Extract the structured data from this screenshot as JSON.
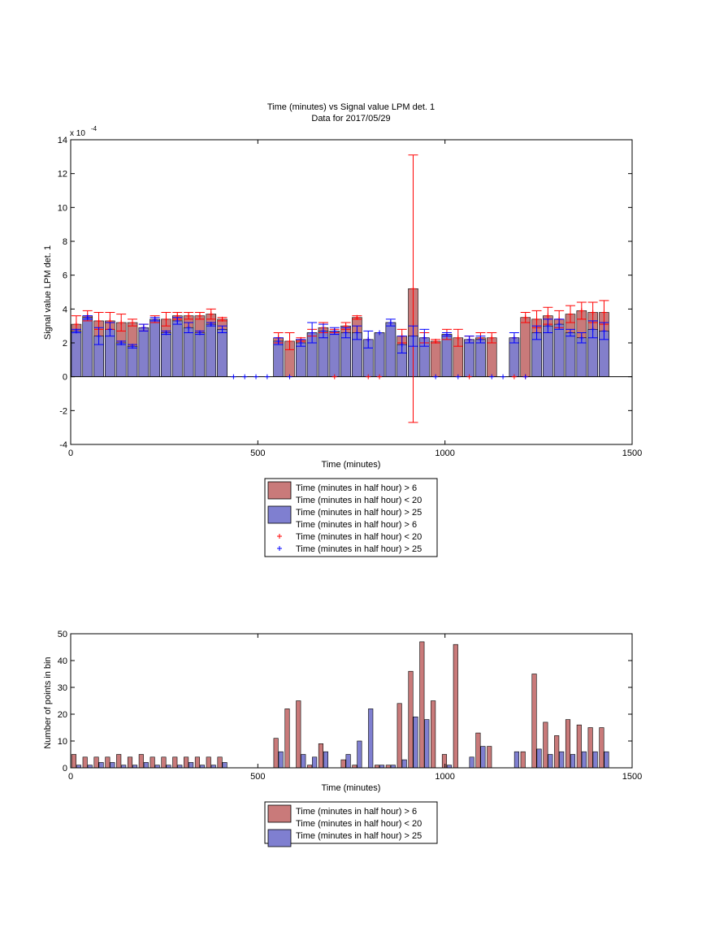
{
  "chart_data": [
    {
      "type": "bar",
      "title": "Time (minutes) vs Signal value LPM det. 1",
      "subtitle": "Data for 2017/05/29",
      "xlabel": "Time (minutes)",
      "ylabel": "Signal value LPM det. 1",
      "y_exponent_label": "x 10",
      "y_exponent_power": "-4",
      "xlim": [
        0,
        1500
      ],
      "ylim": [
        -4,
        14
      ],
      "xticks": [
        0,
        500,
        1000,
        1500
      ],
      "yticks": [
        -4,
        -2,
        0,
        2,
        4,
        6,
        8,
        10,
        12,
        14
      ],
      "grid": false,
      "legend_position": "below",
      "legend": [
        {
          "label": "Time (minutes in half hour) > 6",
          "kind": "bar",
          "color": "#c97a7a"
        },
        {
          "label": "Time (minutes in half hour) < 20",
          "kind": "text"
        },
        {
          "label": "Time (minutes in half hour) > 25",
          "kind": "bar",
          "color": "#7f7fd0"
        },
        {
          "label": "Time (minutes in half hour) > 6",
          "kind": "text"
        },
        {
          "label": "Time (minutes in half hour) < 20",
          "kind": "marker",
          "color": "#ff0000"
        },
        {
          "label": "Time (minutes in half hour) > 25",
          "kind": "marker",
          "color": "#0000ff"
        }
      ],
      "series": [
        {
          "color": "#c97a7a",
          "error_color": "#ff0000",
          "x": [
            15,
            45,
            75,
            105,
            135,
            165,
            195,
            225,
            255,
            285,
            315,
            345,
            375,
            405,
            435,
            465,
            495,
            525,
            555,
            585,
            615,
            645,
            675,
            705,
            735,
            765,
            795,
            825,
            855,
            885,
            915,
            945,
            975,
            1005,
            1035,
            1065,
            1095,
            1125,
            1155,
            1185,
            1215,
            1245,
            1275,
            1305,
            1335,
            1365,
            1395,
            1425
          ],
          "values": [
            3.1,
            3.6,
            3.3,
            3.3,
            3.2,
            3.2,
            2.9,
            3.4,
            3.4,
            3.6,
            3.6,
            3.6,
            3.7,
            3.4,
            0,
            0,
            0,
            0,
            2.3,
            2.1,
            2.2,
            2.6,
            2.9,
            2.7,
            3.0,
            3.5,
            2.2,
            2.6,
            3.2,
            2.4,
            5.2,
            2.3,
            2.1,
            2.5,
            2.3,
            2.2,
            2.3,
            2.3,
            0,
            2.3,
            3.5,
            3.4,
            3.6,
            3.4,
            3.7,
            3.9,
            3.8,
            3.8
          ],
          "errors": [
            0.5,
            0.3,
            0.5,
            0.5,
            0.5,
            0.2,
            0.2,
            0.2,
            0.4,
            0.2,
            0.2,
            0.2,
            0.3,
            0.1,
            0,
            0,
            0,
            0,
            0.3,
            0.5,
            0.1,
            0.2,
            0.3,
            0.1,
            0.2,
            0.1,
            0,
            0,
            0,
            0.4,
            7.9,
            0.3,
            0.1,
            0.3,
            0.5,
            0.2,
            0.3,
            0.3,
            0,
            0,
            0.3,
            0.5,
            0.5,
            0.5,
            0.5,
            0.5,
            0.6,
            0.7
          ],
          "markers_at_zero": [
            705,
            795,
            825,
            1065,
            1185,
            1215
          ]
        },
        {
          "color": "#7f7fd0",
          "error_color": "#0000ff",
          "x": [
            15,
            45,
            75,
            105,
            135,
            165,
            195,
            225,
            255,
            285,
            315,
            345,
            375,
            405,
            435,
            465,
            495,
            525,
            555,
            585,
            615,
            645,
            675,
            705,
            735,
            765,
            795,
            825,
            855,
            885,
            915,
            945,
            975,
            1005,
            1035,
            1065,
            1095,
            1125,
            1155,
            1185,
            1215,
            1245,
            1275,
            1305,
            1335,
            1365,
            1395,
            1425
          ],
          "values": [
            2.7,
            3.5,
            2.4,
            2.8,
            2.0,
            1.8,
            2.9,
            3.4,
            2.6,
            3.3,
            2.9,
            2.6,
            3.1,
            2.8,
            0,
            0,
            0,
            0,
            2.1,
            0,
            2.0,
            2.6,
            2.7,
            2.7,
            2.6,
            2.6,
            2.2,
            2.6,
            3.2,
            1.9,
            2.4,
            2.3,
            0,
            2.5,
            0,
            2.2,
            2.2,
            0,
            0,
            2.3,
            0,
            2.6,
            3.0,
            3.1,
            2.6,
            2.3,
            2.8,
            2.7
          ],
          "errors": [
            0.1,
            0.1,
            0.5,
            0.4,
            0.1,
            0.1,
            0.2,
            0.1,
            0.1,
            0.2,
            0.3,
            0.1,
            0.1,
            0.2,
            0,
            0,
            0,
            0,
            0.2,
            0,
            0.2,
            0.6,
            0.4,
            0.2,
            0.3,
            0.4,
            0.5,
            0,
            0.2,
            0.5,
            0.6,
            0.5,
            0,
            0.1,
            0,
            0.2,
            0.2,
            0,
            0,
            0.3,
            0,
            0.4,
            0.4,
            0.3,
            0.2,
            0.3,
            0.5,
            0.5
          ],
          "markers_at_zero": [
            435,
            465,
            495,
            525,
            585,
            975,
            1035,
            1125,
            1155,
            1215
          ]
        }
      ]
    },
    {
      "type": "bar",
      "xlabel": "Time (minutes)",
      "ylabel": "Number of points in bin",
      "xlim": [
        0,
        1500
      ],
      "ylim": [
        0,
        50
      ],
      "xticks": [
        0,
        500,
        1000,
        1500
      ],
      "yticks": [
        0,
        10,
        20,
        30,
        40,
        50
      ],
      "grid": false,
      "legend_position": "below",
      "legend": [
        {
          "label": "Time (minutes in half hour) > 6",
          "kind": "bar",
          "color": "#c97a7a"
        },
        {
          "label": "Time (minutes in half hour) < 20",
          "kind": "text"
        },
        {
          "label": "Time (minutes in half hour) > 25",
          "kind": "bar",
          "color": "#7f7fd0"
        }
      ],
      "series": [
        {
          "color": "#c97a7a",
          "x": [
            15,
            45,
            75,
            105,
            135,
            165,
            195,
            225,
            255,
            285,
            315,
            345,
            375,
            405,
            435,
            465,
            495,
            525,
            555,
            585,
            615,
            645,
            675,
            705,
            735,
            765,
            795,
            825,
            855,
            885,
            915,
            945,
            975,
            1005,
            1035,
            1065,
            1095,
            1125,
            1155,
            1185,
            1215,
            1245,
            1275,
            1305,
            1335,
            1365,
            1395,
            1425
          ],
          "values": [
            5,
            4,
            4,
            4,
            5,
            4,
            5,
            4,
            4,
            4,
            4,
            4,
            4,
            4,
            0,
            0,
            0,
            0,
            11,
            22,
            25,
            1,
            9,
            0,
            3,
            1,
            0,
            1,
            1,
            24,
            36,
            47,
            25,
            5,
            46,
            0,
            13,
            8,
            0,
            0,
            6,
            35,
            17,
            12,
            18,
            16,
            15,
            15
          ]
        },
        {
          "color": "#7f7fd0",
          "x": [
            15,
            45,
            75,
            105,
            135,
            165,
            195,
            225,
            255,
            285,
            315,
            345,
            375,
            405,
            435,
            465,
            495,
            525,
            555,
            585,
            615,
            645,
            675,
            705,
            735,
            765,
            795,
            825,
            855,
            885,
            915,
            945,
            975,
            1005,
            1035,
            1065,
            1095,
            1125,
            1155,
            1185,
            1215,
            1245,
            1275,
            1305,
            1335,
            1365,
            1395,
            1425
          ],
          "values": [
            1,
            1,
            2,
            2,
            1,
            1,
            2,
            1,
            1,
            1,
            2,
            1,
            1,
            2,
            0,
            0,
            0,
            0,
            6,
            0,
            5,
            4,
            6,
            0,
            5,
            10,
            22,
            1,
            1,
            3,
            19,
            18,
            0,
            1,
            0,
            4,
            8,
            0,
            0,
            6,
            0,
            7,
            5,
            6,
            5,
            6,
            6,
            6
          ]
        }
      ]
    }
  ]
}
